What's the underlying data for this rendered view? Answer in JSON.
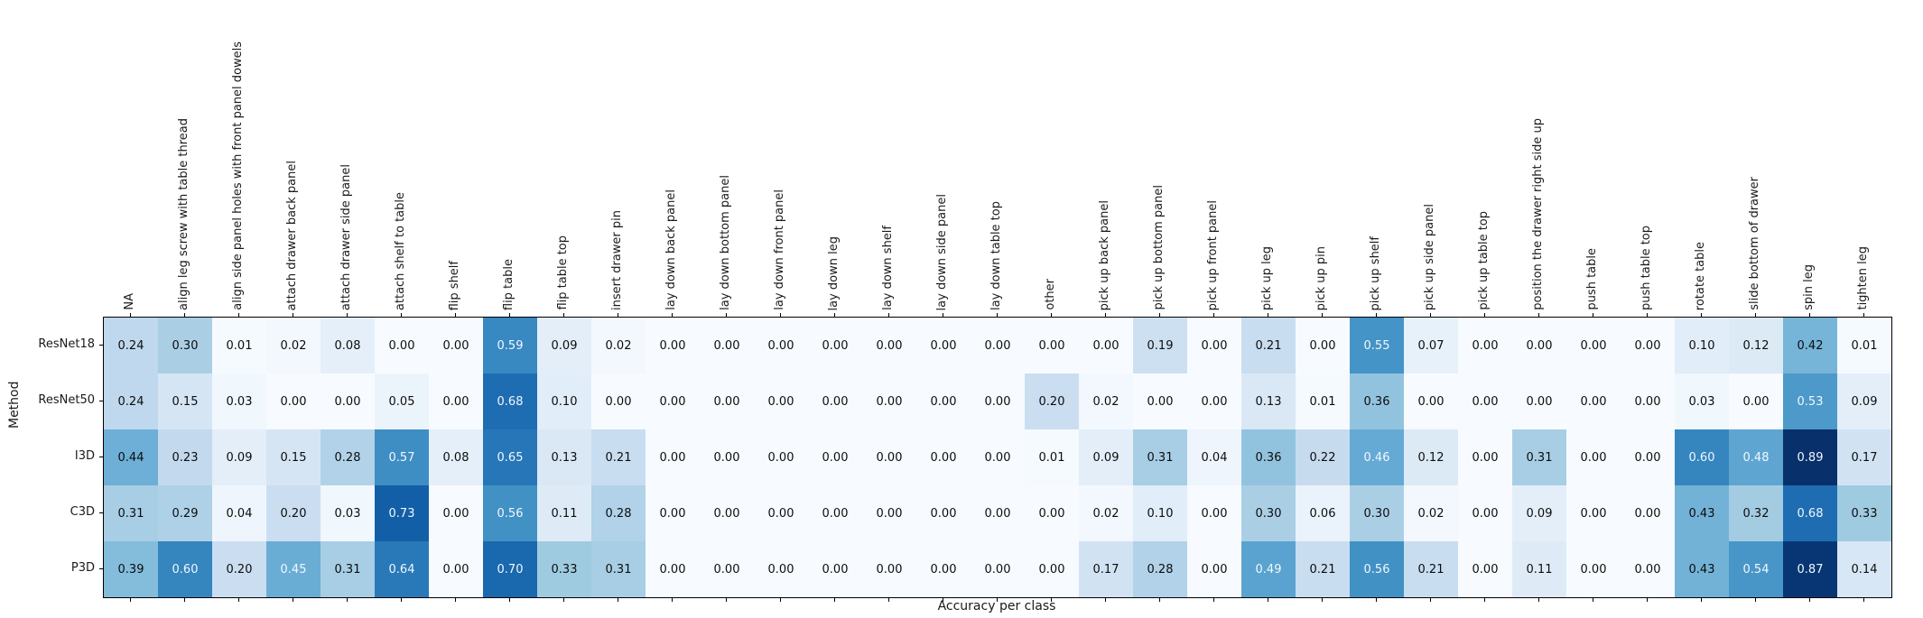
{
  "figure": {
    "xlabel": "Accuracy per class",
    "ylabel": "Method"
  },
  "chart_data": {
    "type": "heatmap",
    "title": "",
    "xlabel": "Accuracy per class",
    "ylabel": "Method",
    "legend": "none",
    "grid": false,
    "value_format": "two-decimals",
    "colormap_name": "Blues",
    "colormap_stops": [
      "#f7fbff",
      "#deebf7",
      "#c6dbef",
      "#9ecae1",
      "#6baed6",
      "#4292c6",
      "#2171b5",
      "#08519c",
      "#08306b"
    ],
    "vmin": 0.0,
    "vmax": 0.89,
    "annotation_text_dark": "#0d0d0d",
    "annotation_text_light": "#f2f7fc",
    "rows": [
      "ResNet18",
      "ResNet50",
      "I3D",
      "C3D",
      "P3D"
    ],
    "columns": [
      "NA",
      "align leg screw with table thread",
      "align side panel holes with front panel dowels",
      "attach drawer back panel",
      "attach drawer side panel",
      "attach shelf to table",
      "flip shelf",
      "flip table",
      "flip table top",
      "insert drawer pin",
      "lay down back panel",
      "lay down bottom panel",
      "lay down front panel",
      "lay down leg",
      "lay down shelf",
      "lay down side panel",
      "lay down table top",
      "other",
      "pick up back panel",
      "pick up bottom panel",
      "pick up front panel",
      "pick up leg",
      "pick up pin",
      "pick up shelf",
      "pick up side panel",
      "pick up table top",
      "position the drawer right side up",
      "push table",
      "push table top",
      "rotate table",
      "slide bottom of drawer",
      "spin leg",
      "tighten leg"
    ],
    "series": [
      {
        "name": "ResNet18",
        "values": [
          0.24,
          0.3,
          0.01,
          0.02,
          0.08,
          0.0,
          0.0,
          0.59,
          0.09,
          0.02,
          0.0,
          0.0,
          0.0,
          0.0,
          0.0,
          0.0,
          0.0,
          0.0,
          0.0,
          0.19,
          0.0,
          0.21,
          0.0,
          0.55,
          0.07,
          0.0,
          0.0,
          0.0,
          0.0,
          0.1,
          0.12,
          0.42,
          0.01
        ]
      },
      {
        "name": "ResNet50",
        "values": [
          0.24,
          0.15,
          0.03,
          0.0,
          0.0,
          0.05,
          0.0,
          0.68,
          0.1,
          0.0,
          0.0,
          0.0,
          0.0,
          0.0,
          0.0,
          0.0,
          0.0,
          0.2,
          0.02,
          0.0,
          0.0,
          0.13,
          0.01,
          0.36,
          0.0,
          0.0,
          0.0,
          0.0,
          0.0,
          0.03,
          0.0,
          0.53,
          0.09
        ]
      },
      {
        "name": "I3D",
        "values": [
          0.44,
          0.23,
          0.09,
          0.15,
          0.28,
          0.57,
          0.08,
          0.65,
          0.13,
          0.21,
          0.0,
          0.0,
          0.0,
          0.0,
          0.0,
          0.0,
          0.0,
          0.01,
          0.09,
          0.31,
          0.04,
          0.36,
          0.22,
          0.46,
          0.12,
          0.0,
          0.31,
          0.0,
          0.0,
          0.6,
          0.48,
          0.89,
          0.17
        ]
      },
      {
        "name": "C3D",
        "values": [
          0.31,
          0.29,
          0.04,
          0.2,
          0.03,
          0.73,
          0.0,
          0.56,
          0.11,
          0.28,
          0.0,
          0.0,
          0.0,
          0.0,
          0.0,
          0.0,
          0.0,
          0.0,
          0.02,
          0.1,
          0.0,
          0.3,
          0.06,
          0.3,
          0.02,
          0.0,
          0.09,
          0.0,
          0.0,
          0.43,
          0.32,
          0.68,
          0.33
        ]
      },
      {
        "name": "P3D",
        "values": [
          0.39,
          0.6,
          0.2,
          0.45,
          0.31,
          0.64,
          0.0,
          0.7,
          0.33,
          0.31,
          0.0,
          0.0,
          0.0,
          0.0,
          0.0,
          0.0,
          0.0,
          0.0,
          0.17,
          0.28,
          0.0,
          0.49,
          0.21,
          0.56,
          0.21,
          0.0,
          0.11,
          0.0,
          0.0,
          0.43,
          0.54,
          0.87,
          0.14
        ]
      }
    ]
  }
}
